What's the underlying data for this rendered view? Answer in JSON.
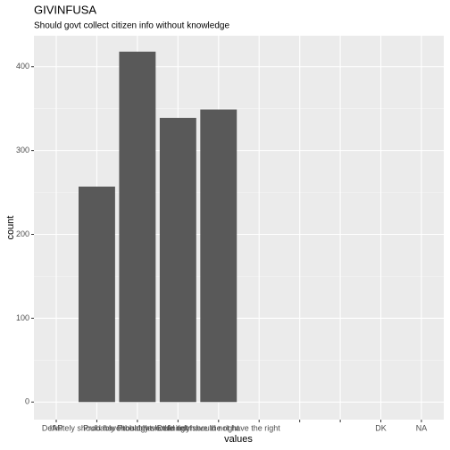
{
  "chart_data": {
    "type": "bar",
    "title": "GIVINFUSA",
    "subtitle": "Should govt collect citizen info without knowledge",
    "x_label": "values",
    "y_label": "count",
    "categories": [
      "IAP",
      "Definitely should have the right",
      "Probably should have the right",
      "Probably should not have the right",
      "Definitely should not have the right",
      null,
      null,
      null,
      "DK",
      "NA"
    ],
    "values": [
      0,
      257,
      418,
      339,
      349,
      0,
      0,
      0,
      0,
      0
    ],
    "color": "#595959",
    "ylim": [
      -21,
      437
    ],
    "yticks": [
      0,
      100,
      200,
      300,
      400
    ],
    "grid": true
  }
}
